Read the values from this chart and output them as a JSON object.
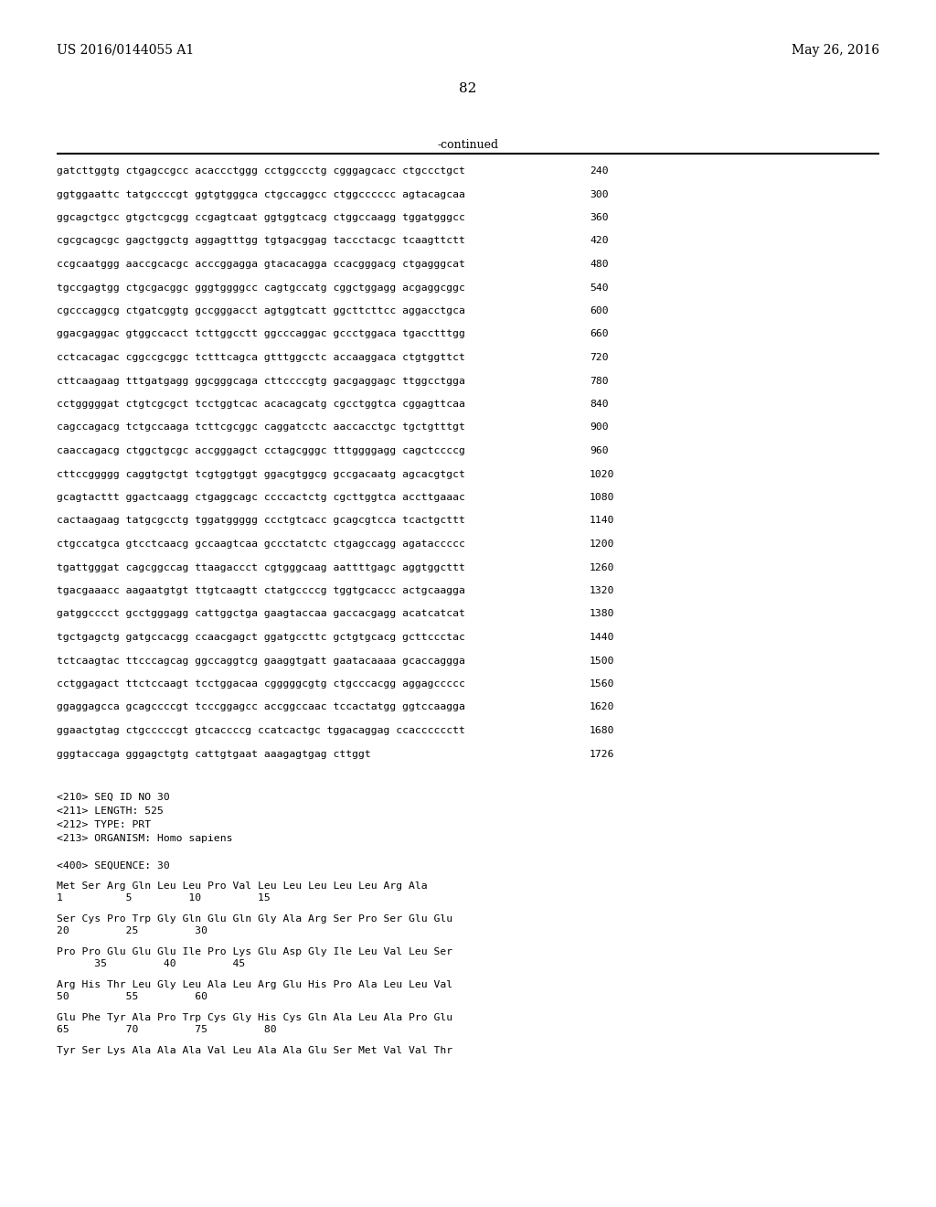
{
  "header_left": "US 2016/0144055 A1",
  "header_right": "May 26, 2016",
  "page_number": "82",
  "continued_label": "-continued",
  "background_color": "#ffffff",
  "text_color": "#000000",
  "sequence_lines": [
    [
      "gatcttggtg ctgagccgcc acaccctggg cctggccctg cgggagcacc ctgccctgct",
      "240"
    ],
    [
      "ggtggaattc tatgccccgt ggtgtgggca ctgccaggcc ctggcccccc agtacagcaa",
      "300"
    ],
    [
      "ggcagctgcc gtgctcgcgg ccgagtcaat ggtggtcacg ctggccaagg tggatgggcc",
      "360"
    ],
    [
      "cgcgcagcgc gagctggctg aggagtttgg tgtgacggag taccctacgc tcaagttctt",
      "420"
    ],
    [
      "ccgcaatggg aaccgcacgc acccggagga gtacacagga ccacgggacg ctgagggcat",
      "480"
    ],
    [
      "tgccgagtgg ctgcgacggc gggtggggcc cagtgccatg cggctggagg acgaggcggc",
      "540"
    ],
    [
      "cgcccaggcg ctgatcggtg gccgggacct agtggtcatt ggcttcttcc aggacctgca",
      "600"
    ],
    [
      "ggacgaggac gtggccacct tcttggcctt ggcccaggac gccctggaca tgacctttgg",
      "660"
    ],
    [
      "cctcacagac cggccgcggc tctttcagca gtttggcctc accaaggaca ctgtggttct",
      "720"
    ],
    [
      "cttcaagaag tttgatgagg ggcgggcaga cttccccgtg gacgaggagc ttggcctgga",
      "780"
    ],
    [
      "cctgggggat ctgtcgcgct tcctggtcac acacagcatg cgcctggtca cggagttcaa",
      "840"
    ],
    [
      "cagccagacg tctgccaaga tcttcgcggc caggatcctc aaccacctgc tgctgtttgt",
      "900"
    ],
    [
      "caaccagacg ctggctgcgc accgggagct cctagcgggc tttggggagg cagctccccg",
      "960"
    ],
    [
      "cttccggggg caggtgctgt tcgtggtggt ggacgtggcg gccgacaatg agcacgtgct",
      "1020"
    ],
    [
      "gcagtacttt ggactcaagg ctgaggcagc ccccactctg cgcttggtca accttgaaac",
      "1080"
    ],
    [
      "cactaagaag tatgcgcctg tggatggggg ccctgtcacc gcagcgtcca tcactgcttt",
      "1140"
    ],
    [
      "ctgccatgca gtcctcaacg gccaagtcaa gccctatctc ctgagccagg agataccccc",
      "1200"
    ],
    [
      "tgattgggat cagcggccag ttaagaccct cgtgggcaag aattttgagc aggtggcttt",
      "1260"
    ],
    [
      "tgacgaaacc aagaatgtgt ttgtcaagtt ctatgccccg tggtgcaccc actgcaagga",
      "1320"
    ],
    [
      "gatggcccct gcctgggagg cattggctga gaagtaccaa gaccacgagg acatcatcat",
      "1380"
    ],
    [
      "tgctgagctg gatgccacgg ccaacgagct ggatgccttc gctgtgcacg gcttccctac",
      "1440"
    ],
    [
      "tctcaagtac ttcccagcag ggccaggtcg gaaggtgatt gaatacaaaa gcaccaggga",
      "1500"
    ],
    [
      "cctggagact ttctccaagt tcctggacaa cgggggcgtg ctgcccacgg aggagccccc",
      "1560"
    ],
    [
      "ggaggagcca gcagccccgt tcccggagcc accggccaac tccactatgg ggtccaagga",
      "1620"
    ],
    [
      "ggaactgtag ctgcccccgt gtcaccccg ccatcactgc tggacaggag ccacccccctt",
      "1680"
    ],
    [
      "gggtaccaga gggagctgtg cattgtgaat aaagagtgag cttggt",
      "1726"
    ]
  ],
  "metadata_lines": [
    "<210> SEQ ID NO 30",
    "<211> LENGTH: 525",
    "<212> TYPE: PRT",
    "<213> ORGANISM: Homo sapiens"
  ],
  "sequence_label": "<400> SEQUENCE: 30",
  "protein_blocks": [
    {
      "seq": "Met Ser Arg Gln Leu Leu Pro Val Leu Leu Leu Leu Leu Arg Ala",
      "num_line": "1          5         10         15"
    },
    {
      "seq": "Ser Cys Pro Trp Gly Gln Glu Gln Gly Ala Arg Ser Pro Ser Glu Glu",
      "num_line": "20         25         30"
    },
    {
      "seq": "Pro Pro Glu Glu Glu Ile Pro Lys Glu Asp Gly Ile Leu Val Leu Ser",
      "num_line": "      35         40         45"
    },
    {
      "seq": "Arg His Thr Leu Gly Leu Ala Leu Arg Glu His Pro Ala Leu Leu Val",
      "num_line": "50         55         60"
    },
    {
      "seq": "Glu Phe Tyr Ala Pro Trp Cys Gly His Cys Gln Ala Leu Ala Pro Glu",
      "num_line": "65         70         75         80"
    },
    {
      "seq": "Tyr Ser Lys Ala Ala Ala Val Leu Ala Ala Glu Ser Met Val Val Thr",
      "num_line": ""
    }
  ]
}
